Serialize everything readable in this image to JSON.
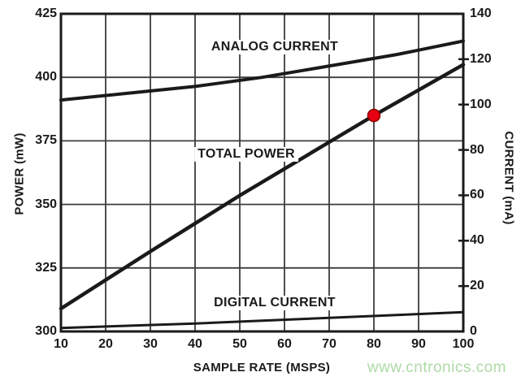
{
  "chart_data": {
    "type": "line",
    "title": "",
    "background": "#ffffff",
    "grid": true,
    "grid_color": "#3d3d3d",
    "axis_color": "#1a1a1a",
    "legend": "inline-labels",
    "x_axis": {
      "label": "SAMPLE RATE (MSPS)",
      "min": 10,
      "max": 100,
      "ticks": [
        10,
        20,
        30,
        40,
        50,
        60,
        70,
        80,
        90,
        100
      ],
      "gridlines": [
        20,
        30,
        40,
        50,
        60,
        70,
        80,
        90
      ]
    },
    "y_left": {
      "label": "POWER (mW)",
      "unit": "mW",
      "min": 300,
      "max": 425,
      "ticks": [
        425,
        400,
        375,
        350,
        325,
        300
      ],
      "gridlines": [
        400,
        375,
        350,
        325
      ]
    },
    "y_right": {
      "label": "CURRENT (mA)",
      "unit": "mA",
      "min": 0,
      "max": 140,
      "ticks": [
        140,
        120,
        100,
        80,
        60,
        40,
        20,
        0
      ],
      "stub_ticks": [
        120,
        100,
        80,
        60,
        40,
        20
      ]
    },
    "series": [
      {
        "name": "ANALOG CURRENT",
        "axis": "right",
        "color": "#1a1a1a",
        "width": 4,
        "x": [
          10,
          25,
          40,
          55,
          70,
          85,
          100
        ],
        "values": [
          102,
          105,
          108,
          112,
          117,
          122,
          128
        ]
      },
      {
        "name": "TOTAL POWER",
        "axis": "left",
        "color": "#1a1a1a",
        "width": 4.5,
        "x": [
          10,
          30,
          50,
          80,
          100
        ],
        "values": [
          309,
          331.5,
          353.5,
          385,
          405
        ]
      },
      {
        "name": "DIGITAL CURRENT",
        "axis": "right",
        "color": "#1a1a1a",
        "width": 3,
        "x": [
          10,
          40,
          70,
          100
        ],
        "values": [
          1.5,
          3.5,
          6,
          8.5
        ]
      }
    ],
    "marker": {
      "series": "TOTAL POWER",
      "axis": "left",
      "x": 80,
      "value": 385,
      "fill": "#e60012",
      "stroke": "#8b0000",
      "radius": 7.5
    }
  },
  "watermark": {
    "text": "www.cntronics.com",
    "color": "#aedaa6"
  }
}
